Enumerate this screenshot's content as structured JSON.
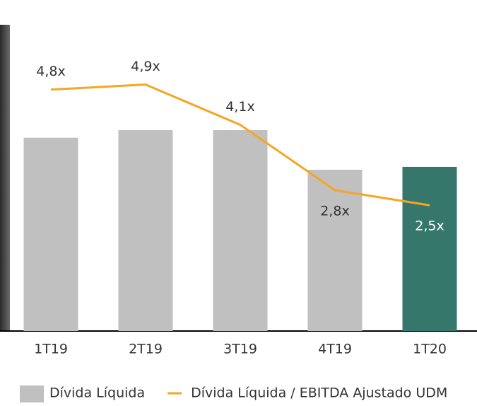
{
  "chart_data": {
    "type": "bar-line",
    "categories": [
      "1T19",
      "2T19",
      "3T19",
      "4T19",
      "1T20"
    ],
    "ylim": [
      0,
      100
    ],
    "y2lim": [
      0,
      6.3
    ],
    "series": [
      {
        "name": "Dívida Líquida",
        "type": "bar",
        "color": "#c0c0c0",
        "colors": [
          "#c0c0c0",
          "#c0c0c0",
          "#c0c0c0",
          "#c0c0c0",
          "#35776b"
        ],
        "values": [
          61,
          63.4,
          63.4,
          50.9,
          51.8
        ]
      },
      {
        "name": "Dívida Líquida / EBITDA Ajustado UDM",
        "type": "line",
        "axis": "y2",
        "color": "#f5a623",
        "values": [
          4.8,
          4.9,
          4.1,
          2.8,
          2.5
        ],
        "value_labels": [
          "4,8x",
          "4,9x",
          "4,1x",
          "2,8x",
          "2,5x"
        ]
      }
    ]
  }
}
